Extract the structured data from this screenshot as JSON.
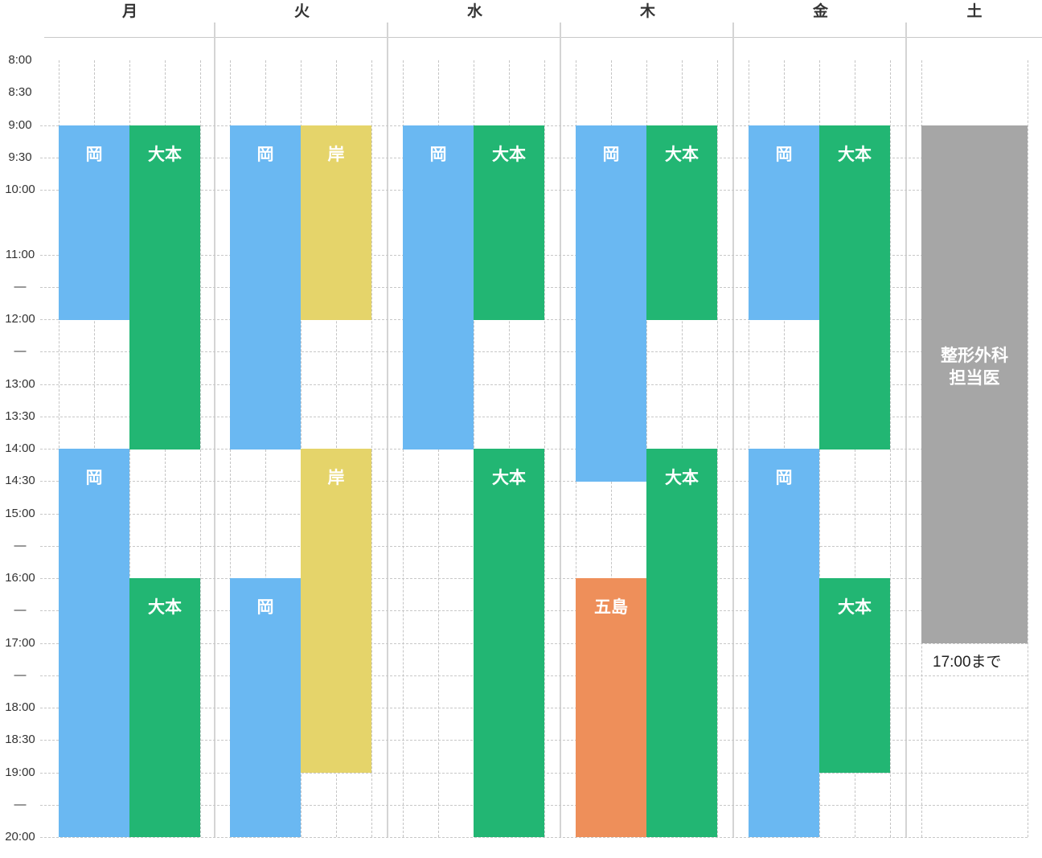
{
  "days": [
    "月",
    "火",
    "水",
    "木",
    "金",
    "土"
  ],
  "time_labels": [
    {
      "t": 8.0,
      "label": "8:00"
    },
    {
      "t": 8.5,
      "label": "8:30"
    },
    {
      "t": 9.0,
      "label": "9:00"
    },
    {
      "t": 9.5,
      "label": "9:30"
    },
    {
      "t": 10.0,
      "label": "10:00"
    },
    {
      "t": 11.0,
      "label": "11:00"
    },
    {
      "t": 11.5,
      "label": "—"
    },
    {
      "t": 12.0,
      "label": "12:00"
    },
    {
      "t": 12.5,
      "label": "—"
    },
    {
      "t": 13.0,
      "label": "13:00"
    },
    {
      "t": 13.5,
      "label": "13:30"
    },
    {
      "t": 14.0,
      "label": "14:00"
    },
    {
      "t": 14.5,
      "label": "14:30"
    },
    {
      "t": 15.0,
      "label": "15:00"
    },
    {
      "t": 15.5,
      "label": "—"
    },
    {
      "t": 16.0,
      "label": "16:00"
    },
    {
      "t": 16.5,
      "label": "—"
    },
    {
      "t": 17.0,
      "label": "17:00"
    },
    {
      "t": 17.5,
      "label": "—"
    },
    {
      "t": 18.0,
      "label": "18:00"
    },
    {
      "t": 18.5,
      "label": "18:30"
    },
    {
      "t": 19.0,
      "label": "19:00"
    },
    {
      "t": 19.5,
      "label": "—"
    },
    {
      "t": 20.0,
      "label": "20:00"
    }
  ],
  "colors": {
    "oka": "#6ab8f2",
    "ohmoto": "#22b673",
    "kishi": "#e5d46a",
    "goto": "#ee8f5a",
    "orthopedics": "#a6a6a6"
  },
  "blocks": [
    {
      "day": 0,
      "lane": 0,
      "start": "9:00",
      "end": "12:00",
      "label": "岡",
      "color": "oka"
    },
    {
      "day": 0,
      "lane": 1,
      "start": "9:00",
      "end": "14:00",
      "label": "大本",
      "color": "ohmoto"
    },
    {
      "day": 0,
      "lane": 0,
      "start": "14:00",
      "end": "20:00",
      "label": "岡",
      "color": "oka"
    },
    {
      "day": 0,
      "lane": 1,
      "start": "16:00",
      "end": "20:00",
      "label": "大本",
      "color": "ohmoto"
    },
    {
      "day": 1,
      "lane": 0,
      "start": "9:00",
      "end": "14:00",
      "label": "岡",
      "color": "oka"
    },
    {
      "day": 1,
      "lane": 1,
      "start": "9:00",
      "end": "12:00",
      "label": "岸",
      "color": "kishi"
    },
    {
      "day": 1,
      "lane": 1,
      "start": "14:00",
      "end": "19:00",
      "label": "岸",
      "color": "kishi"
    },
    {
      "day": 1,
      "lane": 0,
      "start": "16:00",
      "end": "20:00",
      "label": "岡",
      "color": "oka"
    },
    {
      "day": 2,
      "lane": 0,
      "start": "9:00",
      "end": "14:00",
      "label": "岡",
      "color": "oka"
    },
    {
      "day": 2,
      "lane": 1,
      "start": "9:00",
      "end": "12:00",
      "label": "大本",
      "color": "ohmoto"
    },
    {
      "day": 2,
      "lane": 1,
      "start": "14:00",
      "end": "20:00",
      "label": "大本",
      "color": "ohmoto"
    },
    {
      "day": 3,
      "lane": 0,
      "start": "9:00",
      "end": "14:30",
      "label": "岡",
      "color": "oka"
    },
    {
      "day": 3,
      "lane": 1,
      "start": "9:00",
      "end": "12:00",
      "label": "大本",
      "color": "ohmoto"
    },
    {
      "day": 3,
      "lane": 1,
      "start": "14:00",
      "end": "20:00",
      "label": "大本",
      "color": "ohmoto"
    },
    {
      "day": 3,
      "lane": 0,
      "start": "16:00",
      "end": "20:00",
      "label": "五島",
      "color": "goto"
    },
    {
      "day": 4,
      "lane": 0,
      "start": "9:00",
      "end": "12:00",
      "label": "岡",
      "color": "oka"
    },
    {
      "day": 4,
      "lane": 1,
      "start": "9:00",
      "end": "14:00",
      "label": "大本",
      "color": "ohmoto"
    },
    {
      "day": 4,
      "lane": 0,
      "start": "14:00",
      "end": "20:00",
      "label": "岡",
      "color": "oka"
    },
    {
      "day": 4,
      "lane": 1,
      "start": "16:00",
      "end": "19:00",
      "label": "大本",
      "color": "ohmoto"
    }
  ],
  "saturday": {
    "start": "9:00",
    "end": "17:00",
    "label_line1": "整形外科",
    "label_line2": "担当医",
    "note": "17:00まで",
    "color": "orthopedics"
  }
}
